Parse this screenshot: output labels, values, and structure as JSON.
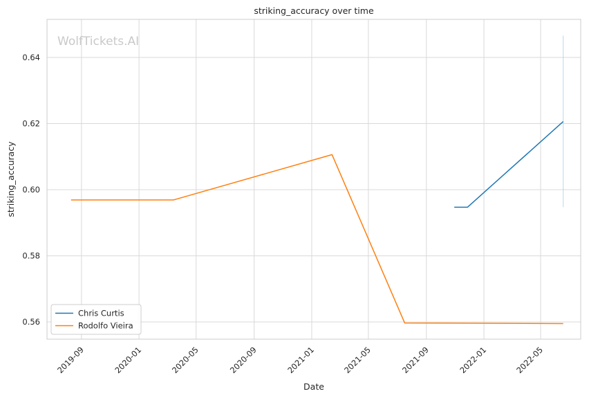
{
  "chart_data": {
    "type": "line",
    "title": "striking_accuracy over time",
    "xlabel": "Date",
    "ylabel": "striking_accuracy",
    "watermark": "WolfTickets.AI",
    "x_ticks": [
      "2019-09",
      "2020-01",
      "2020-05",
      "2020-09",
      "2021-01",
      "2021-05",
      "2021-09",
      "2022-01",
      "2022-05"
    ],
    "y_ticks": [
      "0.56",
      "0.58",
      "0.60",
      "0.62",
      "0.64"
    ],
    "xlim": [
      "2019-06-20",
      "2022-07-25"
    ],
    "ylim": [
      0.5548,
      0.6515
    ],
    "grid": true,
    "legend_position": "lower-left",
    "series": [
      {
        "name": "Chris Curtis",
        "color": "#1f77b4",
        "x": [
          "2021-10-30",
          "2021-11-27",
          "2022-06-18"
        ],
        "y": [
          0.5947,
          0.5947,
          0.6206
        ]
      },
      {
        "name": "Rodolfo Vieira",
        "color": "#ff7f0e",
        "x": [
          "2019-08-10",
          "2020-03-14",
          "2021-02-13",
          "2021-07-17",
          "2022-06-18"
        ],
        "y": [
          0.5969,
          0.5969,
          0.6106,
          0.5597,
          0.5595
        ]
      }
    ],
    "error_band": {
      "series": "Chris Curtis",
      "x": "2022-06-18",
      "low": 0.5947,
      "high": 0.6466,
      "color": "#a6cfe6"
    }
  }
}
